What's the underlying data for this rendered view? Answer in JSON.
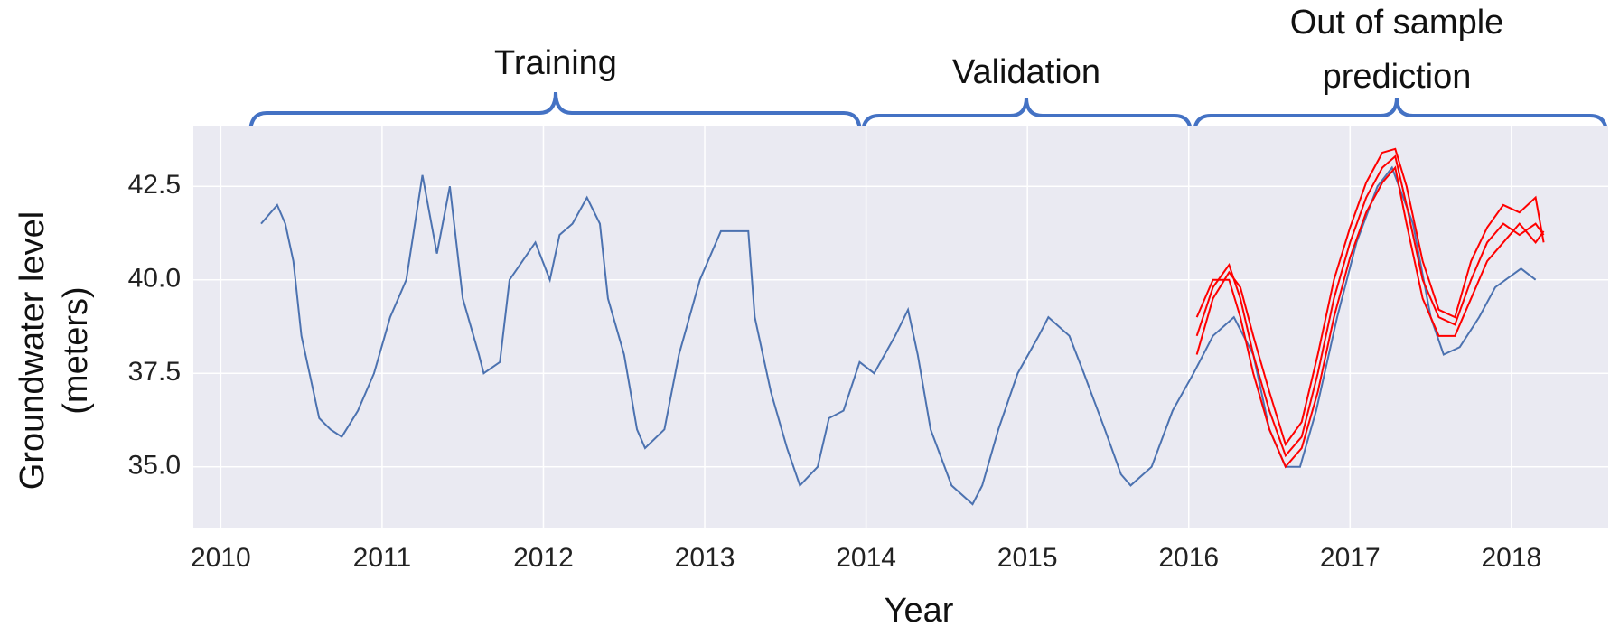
{
  "chart_data": {
    "type": "line",
    "xlabel": "Year",
    "ylabel": "Groundwater level (meters)",
    "annotations": [
      "Training",
      "Validation",
      "Out of sample prediction"
    ],
    "xlim": [
      2009.83,
      2018.6
    ],
    "xticks": [
      2010,
      2011,
      2012,
      2013,
      2014,
      2015,
      2016,
      2017,
      2018
    ],
    "ylim": [
      33.35,
      44.1
    ],
    "yticks": [
      {
        "value": 35,
        "label": "35.0"
      },
      37.5,
      {
        "value": 40,
        "label": "40.0"
      },
      42.5
    ],
    "grid": true,
    "background": "#eaeaf2",
    "series": [
      {
        "color": "#4c72b0",
        "x": [
          2010.25,
          2010.35,
          2010.4,
          2010.45,
          2010.5,
          2010.55,
          2010.61,
          2010.68,
          2010.75,
          2010.85,
          2010.95,
          2011.05,
          2011.15,
          2011.25,
          2011.34,
          2011.42,
          2011.5,
          2011.6,
          2011.63,
          2011.73,
          2011.79,
          2011.95,
          2012.04,
          2012.1,
          2012.18,
          2012.27,
          2012.35,
          2012.4,
          2012.5,
          2012.58,
          2012.63,
          2012.75,
          2012.84,
          2012.97,
          2013.1,
          2013.27,
          2013.31,
          2013.41,
          2013.51,
          2013.59,
          2013.7,
          2013.77,
          2013.86,
          2013.96,
          2014.05,
          2014.18,
          2014.26,
          2014.32,
          2014.4,
          2014.53,
          2014.66,
          2014.72,
          2014.82,
          2014.94,
          2015.07,
          2015.13,
          2015.26,
          2015.35,
          2015.48,
          2015.58,
          2015.64,
          2015.77,
          2015.9,
          2016.03,
          2016.15,
          2016.28,
          2016.4,
          2016.5,
          2016.6,
          2016.69,
          2016.79,
          2016.92,
          2017.04,
          2017.17,
          2017.26,
          2017.39,
          2017.5,
          2017.58,
          2017.68,
          2017.8,
          2017.9,
          2018.06,
          2018.15
        ],
        "values": [
          41.5,
          42.0,
          41.5,
          40.5,
          38.5,
          37.5,
          36.3,
          36.0,
          35.8,
          36.5,
          37.5,
          39.0,
          40.0,
          42.8,
          40.7,
          42.5,
          39.5,
          38.0,
          37.5,
          37.8,
          40.0,
          41.0,
          40.0,
          41.2,
          41.5,
          42.2,
          41.5,
          39.5,
          38.0,
          36.0,
          35.5,
          36.0,
          38.0,
          40.0,
          41.3,
          41.3,
          39.0,
          37.0,
          35.5,
          34.5,
          35.0,
          36.3,
          36.5,
          37.8,
          37.5,
          38.5,
          39.2,
          38.0,
          36.0,
          34.5,
          34.0,
          34.5,
          36.0,
          37.5,
          38.5,
          39.0,
          38.5,
          37.5,
          36.0,
          34.8,
          34.5,
          35.0,
          36.5,
          37.5,
          38.5,
          39.0,
          38.0,
          36.0,
          35.0,
          35.0,
          36.5,
          39.0,
          41.0,
          42.5,
          43.0,
          41.5,
          39.0,
          38.0,
          38.2,
          39.0,
          39.8,
          40.3,
          40.0
        ]
      },
      {
        "color": "#ff0000",
        "x": [
          2016.05,
          2016.15,
          2016.25,
          2016.32,
          2016.4,
          2016.5,
          2016.6,
          2016.7,
          2016.8,
          2016.9,
          2017.0,
          2017.1,
          2017.2,
          2017.28,
          2017.35,
          2017.45,
          2017.55,
          2017.65,
          2017.75,
          2017.85,
          2017.95,
          2018.05,
          2018.15,
          2018.2
        ],
        "values": [
          38.5,
          39.8,
          40.4,
          39.5,
          38.0,
          36.5,
          35.3,
          35.8,
          37.5,
          39.5,
          41.0,
          42.2,
          43.0,
          43.3,
          42.0,
          40.0,
          39.0,
          38.8,
          40.0,
          41.0,
          41.5,
          41.2,
          41.5,
          41.2
        ]
      },
      {
        "color": "#ff0000",
        "x": [
          2016.05,
          2016.15,
          2016.25,
          2016.32,
          2016.4,
          2016.5,
          2016.6,
          2016.7,
          2016.8,
          2016.9,
          2017.0,
          2017.1,
          2017.2,
          2017.28,
          2017.35,
          2017.45,
          2017.55,
          2017.65,
          2017.75,
          2017.85,
          2017.95,
          2018.05,
          2018.15,
          2018.2
        ],
        "values": [
          39.0,
          40.0,
          40.0,
          39.0,
          37.5,
          36.0,
          35.0,
          35.5,
          37.0,
          39.0,
          40.6,
          41.8,
          42.6,
          43.0,
          41.5,
          39.5,
          38.5,
          38.5,
          39.5,
          40.5,
          41.0,
          41.5,
          41.0,
          41.3
        ]
      },
      {
        "color": "#ff0000",
        "x": [
          2016.05,
          2016.15,
          2016.25,
          2016.32,
          2016.4,
          2016.5,
          2016.6,
          2016.7,
          2016.8,
          2016.9,
          2017.0,
          2017.1,
          2017.2,
          2017.28,
          2017.35,
          2017.45,
          2017.55,
          2017.65,
          2017.75,
          2017.85,
          2017.95,
          2018.05,
          2018.15,
          2018.2
        ],
        "values": [
          38.0,
          39.5,
          40.2,
          39.8,
          38.5,
          37.0,
          35.6,
          36.2,
          38.0,
          40.0,
          41.4,
          42.6,
          43.4,
          43.5,
          42.5,
          40.5,
          39.2,
          39.0,
          40.5,
          41.4,
          42.0,
          41.8,
          42.2,
          41.0
        ]
      }
    ]
  }
}
